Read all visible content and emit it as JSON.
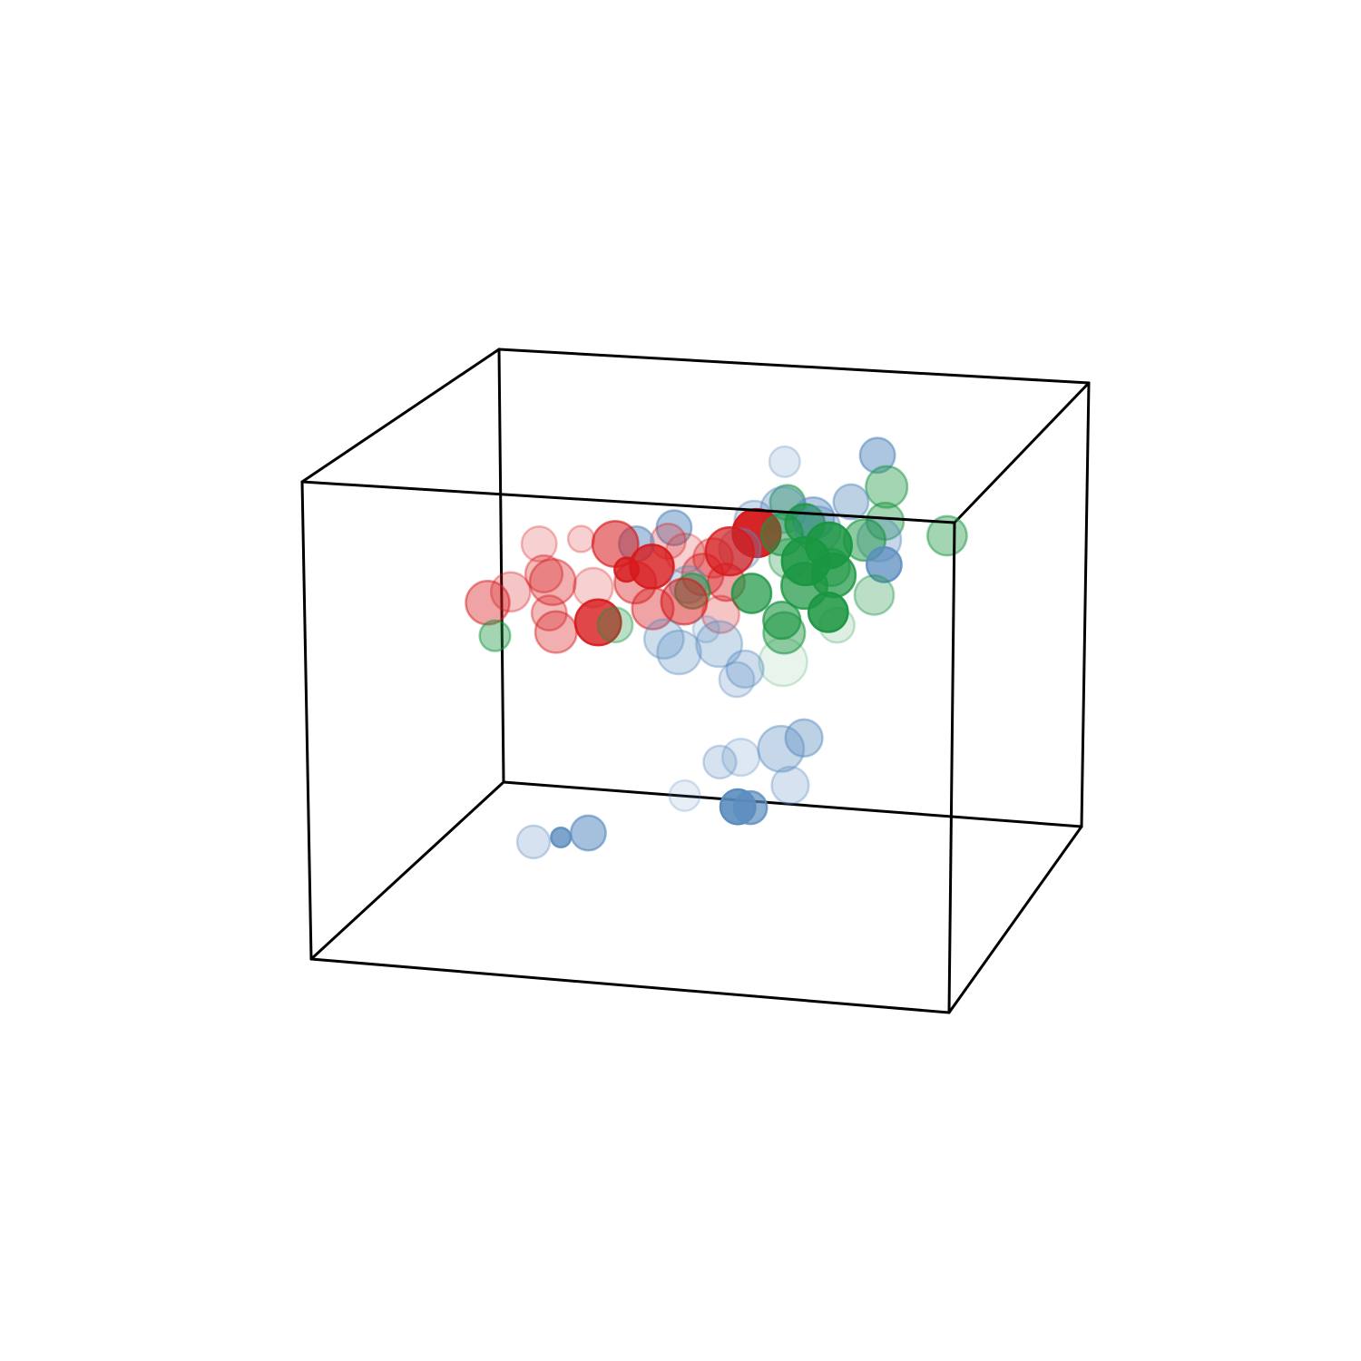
{
  "chart_data": {
    "type": "scatter",
    "subtype": "3d-bubble",
    "title": "",
    "xlabel": "",
    "ylabel": "",
    "zlabel": "",
    "axes_visible": false,
    "box_frame": true,
    "grid": false,
    "legend": "none",
    "xlim": [
      0,
      10
    ],
    "ylim": [
      0,
      10
    ],
    "zlim": [
      0,
      10
    ],
    "series": [
      {
        "color": "#d7191c",
        "points": [
          {
            "x": 1.3,
            "y": 5.0,
            "z": 6.2,
            "s": 0.75,
            "a": 0.4
          },
          {
            "x": 1.6,
            "y": 5.2,
            "z": 6.4,
            "s": 0.65,
            "a": 0.25
          },
          {
            "x": 1.8,
            "y": 6.0,
            "z": 7.2,
            "s": 0.55,
            "a": 0.2
          },
          {
            "x": 2.0,
            "y": 5.6,
            "z": 6.7,
            "s": 0.6,
            "a": 0.3
          },
          {
            "x": 2.2,
            "y": 5.4,
            "z": 6.6,
            "s": 0.8,
            "a": 0.35
          },
          {
            "x": 2.4,
            "y": 6.2,
            "z": 7.3,
            "s": 0.35,
            "a": 0.2
          },
          {
            "x": 2.5,
            "y": 4.6,
            "z": 5.8,
            "s": 0.7,
            "a": 0.35
          },
          {
            "x": 2.9,
            "y": 5.2,
            "z": 6.6,
            "s": 0.65,
            "a": 0.2
          },
          {
            "x": 3.0,
            "y": 6.0,
            "z": 7.3,
            "s": 0.8,
            "a": 0.55
          },
          {
            "x": 3.1,
            "y": 4.8,
            "z": 6.0,
            "s": 0.8,
            "a": 0.8
          },
          {
            "x": 3.3,
            "y": 5.6,
            "z": 6.9,
            "s": 0.3,
            "a": 0.8
          },
          {
            "x": 3.5,
            "y": 5.4,
            "z": 6.7,
            "s": 0.7,
            "a": 0.4
          },
          {
            "x": 3.7,
            "y": 5.6,
            "z": 7.0,
            "s": 0.75,
            "a": 0.8
          },
          {
            "x": 3.8,
            "y": 6.1,
            "z": 7.4,
            "s": 0.55,
            "a": 0.25
          },
          {
            "x": 3.9,
            "y": 5.0,
            "z": 6.3,
            "s": 0.7,
            "a": 0.4
          },
          {
            "x": 4.1,
            "y": 6.0,
            "z": 7.2,
            "s": 0.65,
            "a": 0.2
          },
          {
            "x": 4.3,
            "y": 5.3,
            "z": 6.4,
            "s": 0.8,
            "a": 0.5
          },
          {
            "x": 4.6,
            "y": 5.8,
            "z": 7.2,
            "s": 0.65,
            "a": 0.3
          },
          {
            "x": 4.8,
            "y": 6.0,
            "z": 7.3,
            "s": 0.85,
            "a": 0.7
          },
          {
            "x": 4.9,
            "y": 5.5,
            "z": 6.8,
            "s": 0.6,
            "a": 0.4
          },
          {
            "x": 5.1,
            "y": 6.4,
            "z": 7.6,
            "s": 0.85,
            "a": 0.95
          },
          {
            "x": 5.0,
            "y": 4.9,
            "z": 6.3,
            "s": 0.6,
            "a": 0.25
          },
          {
            "x": 2.3,
            "y": 4.9,
            "z": 6.1,
            "s": 0.55,
            "a": 0.3
          },
          {
            "x": 4.5,
            "y": 5.6,
            "z": 6.9,
            "s": 0.7,
            "a": 0.35
          }
        ]
      },
      {
        "color": "#1a9641",
        "points": [
          {
            "x": 5.4,
            "y": 7.0,
            "z": 8.1,
            "s": 0.55,
            "a": 0.45
          },
          {
            "x": 5.5,
            "y": 6.4,
            "z": 7.6,
            "s": 0.7,
            "a": 0.5
          },
          {
            "x": 5.8,
            "y": 6.6,
            "z": 7.8,
            "s": 0.65,
            "a": 0.7
          },
          {
            "x": 6.0,
            "y": 6.0,
            "z": 7.2,
            "s": 0.85,
            "a": 0.85
          },
          {
            "x": 6.1,
            "y": 5.6,
            "z": 6.8,
            "s": 0.8,
            "a": 0.7
          },
          {
            "x": 6.3,
            "y": 6.2,
            "z": 7.5,
            "s": 0.8,
            "a": 0.85
          },
          {
            "x": 6.5,
            "y": 5.8,
            "z": 7.0,
            "s": 0.75,
            "a": 0.7
          },
          {
            "x": 6.6,
            "y": 5.2,
            "z": 6.4,
            "s": 0.65,
            "a": 0.85
          },
          {
            "x": 6.8,
            "y": 6.4,
            "z": 7.6,
            "s": 0.7,
            "a": 0.5
          },
          {
            "x": 7.0,
            "y": 6.8,
            "z": 7.9,
            "s": 0.6,
            "a": 0.4
          },
          {
            "x": 7.2,
            "y": 5.6,
            "z": 6.7,
            "s": 0.65,
            "a": 0.3
          },
          {
            "x": 6.9,
            "y": 7.2,
            "z": 8.5,
            "s": 0.7,
            "a": 0.4
          },
          {
            "x": 5.9,
            "y": 5.1,
            "z": 6.2,
            "s": 0.6,
            "a": 0.6
          },
          {
            "x": 5.3,
            "y": 5.5,
            "z": 6.6,
            "s": 0.65,
            "a": 0.7
          },
          {
            "x": 4.4,
            "y": 5.4,
            "z": 6.6,
            "s": 0.55,
            "a": 0.5
          },
          {
            "x": 3.4,
            "y": 4.7,
            "z": 6.0,
            "s": 0.55,
            "a": 0.3
          },
          {
            "x": 1.6,
            "y": 4.4,
            "z": 5.7,
            "s": 0.45,
            "a": 0.4
          },
          {
            "x": 6.2,
            "y": 4.2,
            "z": 5.6,
            "s": 0.85,
            "a": 0.1
          },
          {
            "x": 8.1,
            "y": 6.4,
            "z": 7.8,
            "s": 0.65,
            "a": 0.4
          },
          {
            "x": 5.7,
            "y": 6.1,
            "z": 7.2,
            "s": 0.65,
            "a": 0.3
          },
          {
            "x": 6.4,
            "y": 6.0,
            "z": 7.1,
            "s": 0.6,
            "a": 0.45
          },
          {
            "x": 6.0,
            "y": 4.9,
            "z": 6.0,
            "s": 0.7,
            "a": 0.45
          },
          {
            "x": 6.8,
            "y": 5.0,
            "z": 6.2,
            "s": 0.55,
            "a": 0.15
          }
        ]
      },
      {
        "color": "#5b8dbf",
        "points": [
          {
            "x": 5.0,
            "y": 6.6,
            "z": 7.8,
            "s": 0.65,
            "a": 0.3
          },
          {
            "x": 5.4,
            "y": 6.8,
            "z": 8.0,
            "s": 0.8,
            "a": 0.35
          },
          {
            "x": 5.9,
            "y": 6.7,
            "z": 7.9,
            "s": 0.7,
            "a": 0.45
          },
          {
            "x": 6.4,
            "y": 7.0,
            "z": 8.2,
            "s": 0.55,
            "a": 0.4
          },
          {
            "x": 7.0,
            "y": 6.5,
            "z": 7.6,
            "s": 0.75,
            "a": 0.35
          },
          {
            "x": 7.2,
            "y": 6.1,
            "z": 7.2,
            "s": 0.55,
            "a": 0.75
          },
          {
            "x": 3.8,
            "y": 6.4,
            "z": 7.6,
            "s": 0.55,
            "a": 0.5
          },
          {
            "x": 4.9,
            "y": 6.2,
            "z": 7.3,
            "s": 0.7,
            "a": 0.3
          },
          {
            "x": 4.2,
            "y": 4.6,
            "z": 5.8,
            "s": 0.65,
            "a": 0.3
          },
          {
            "x": 4.5,
            "y": 4.4,
            "z": 5.6,
            "s": 0.75,
            "a": 0.3
          },
          {
            "x": 5.1,
            "y": 4.5,
            "z": 5.8,
            "s": 0.8,
            "a": 0.3
          },
          {
            "x": 4.8,
            "y": 4.8,
            "z": 6.0,
            "s": 0.35,
            "a": 0.2
          },
          {
            "x": 5.6,
            "y": 4.2,
            "z": 5.4,
            "s": 0.6,
            "a": 0.3
          },
          {
            "x": 6.0,
            "y": 2.7,
            "z": 4.0,
            "s": 0.6,
            "a": 0.2
          },
          {
            "x": 6.6,
            "y": 2.8,
            "z": 4.2,
            "s": 0.8,
            "a": 0.35
          },
          {
            "x": 6.9,
            "y": 3.0,
            "z": 4.4,
            "s": 0.6,
            "a": 0.4
          },
          {
            "x": 5.7,
            "y": 2.6,
            "z": 3.9,
            "s": 0.5,
            "a": 0.25
          },
          {
            "x": 6.2,
            "y": 1.9,
            "z": 3.2,
            "s": 0.55,
            "a": 0.9
          },
          {
            "x": 6.4,
            "y": 1.9,
            "z": 3.2,
            "s": 0.5,
            "a": 0.7
          },
          {
            "x": 5.3,
            "y": 2.1,
            "z": 3.3,
            "s": 0.45,
            "a": 0.15
          },
          {
            "x": 4.0,
            "y": 1.4,
            "z": 2.6,
            "s": 0.55,
            "a": 0.55
          },
          {
            "x": 3.6,
            "y": 1.3,
            "z": 2.5,
            "s": 0.2,
            "a": 0.8
          },
          {
            "x": 3.2,
            "y": 1.2,
            "z": 2.4,
            "s": 0.5,
            "a": 0.25
          },
          {
            "x": 6.9,
            "y": 2.3,
            "z": 3.6,
            "s": 0.6,
            "a": 0.25
          },
          {
            "x": 6.0,
            "y": 6.6,
            "z": 7.7,
            "s": 0.8,
            "a": 0.35
          },
          {
            "x": 5.5,
            "y": 4.1,
            "z": 5.2,
            "s": 0.55,
            "a": 0.25
          },
          {
            "x": 3.3,
            "y": 6.1,
            "z": 7.3,
            "s": 0.55,
            "a": 0.5
          },
          {
            "x": 4.3,
            "y": 5.5,
            "z": 6.7,
            "s": 0.6,
            "a": 0.3
          },
          {
            "x": 5.2,
            "y": 7.5,
            "z": 8.8,
            "s": 0.45,
            "a": 0.2
          },
          {
            "x": 6.6,
            "y": 7.7,
            "z": 9.0,
            "s": 0.55,
            "a": 0.5
          }
        ]
      }
    ]
  }
}
